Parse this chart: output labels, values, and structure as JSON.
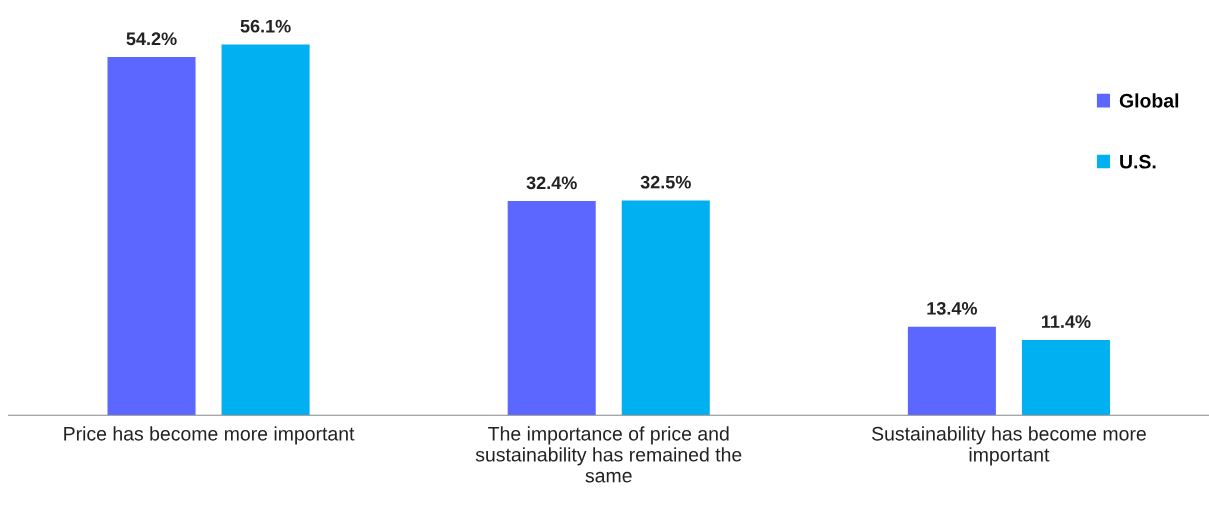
{
  "chart_data": {
    "type": "bar",
    "categories": [
      "Price has become more important",
      "The importance of price and sustainability has remained the same",
      "Sustainability has become more important"
    ],
    "series": [
      {
        "name": "Global",
        "color": "#5b67ff",
        "values": [
          54.2,
          32.4,
          13.4
        ],
        "value_labels": [
          "54.2%",
          "32.4%",
          "13.4%"
        ]
      },
      {
        "name": "U.S.",
        "color": "#00b0f0",
        "values": [
          56.1,
          32.5,
          11.4
        ],
        "value_labels": [
          "56.1%",
          "32.5%",
          "11.4%"
        ]
      }
    ],
    "grid": false,
    "legend": "right"
  }
}
